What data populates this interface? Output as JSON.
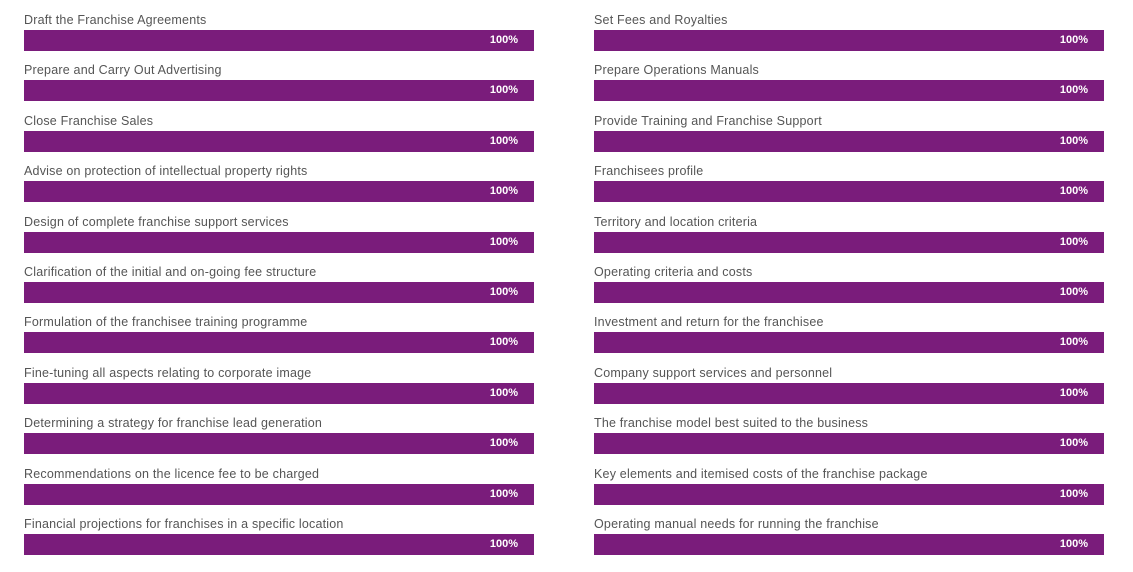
{
  "theme": {
    "accent": "#7a1c7b"
  },
  "left_column": [
    {
      "label": "Draft the Franchise Agreements",
      "value_text": "100%",
      "progress": 100
    },
    {
      "label": "Prepare and Carry Out Advertising",
      "value_text": "100%",
      "progress": 100
    },
    {
      "label": "Close Franchise Sales",
      "value_text": "100%",
      "progress": 100
    },
    {
      "label": "Advise on protection of intellectual property rights",
      "value_text": "100%",
      "progress": 100
    },
    {
      "label": "Design of complete franchise support services",
      "value_text": "100%",
      "progress": 100
    },
    {
      "label": "Clarification of the initial and on-going fee structure",
      "value_text": "100%",
      "progress": 100
    },
    {
      "label": "Formulation of the franchisee training programme",
      "value_text": "100%",
      "progress": 100
    },
    {
      "label": "Fine-tuning all aspects relating to corporate image",
      "value_text": "100%",
      "progress": 100
    },
    {
      "label": "Determining a strategy for franchise lead generation",
      "value_text": "100%",
      "progress": 100
    },
    {
      "label": "Recommendations on the licence fee to be charged",
      "value_text": "100%",
      "progress": 100
    },
    {
      "label": "Financial projections for franchises in a specific location",
      "value_text": "100%",
      "progress": 100
    }
  ],
  "right_column": [
    {
      "label": "Set Fees and Royalties",
      "value_text": "100%",
      "progress": 100
    },
    {
      "label": "Prepare Operations Manuals",
      "value_text": "100%",
      "progress": 100
    },
    {
      "label": "Provide Training and Franchise Support",
      "value_text": "100%",
      "progress": 100
    },
    {
      "label": "Franchisees profile",
      "value_text": "100%",
      "progress": 100
    },
    {
      "label": "Territory and location criteria",
      "value_text": "100%",
      "progress": 100
    },
    {
      "label": "Operating criteria and costs",
      "value_text": "100%",
      "progress": 100
    },
    {
      "label": "Investment and return for the franchisee",
      "value_text": "100%",
      "progress": 100
    },
    {
      "label": "Company support services and personnel",
      "value_text": "100%",
      "progress": 100
    },
    {
      "label": "The franchise model best suited to the business",
      "value_text": "100%",
      "progress": 100
    },
    {
      "label": "Key elements and itemised costs of the franchise package",
      "value_text": "100%",
      "progress": 100
    },
    {
      "label": "Operating manual needs for running the franchise",
      "value_text": "100%",
      "progress": 100
    }
  ]
}
